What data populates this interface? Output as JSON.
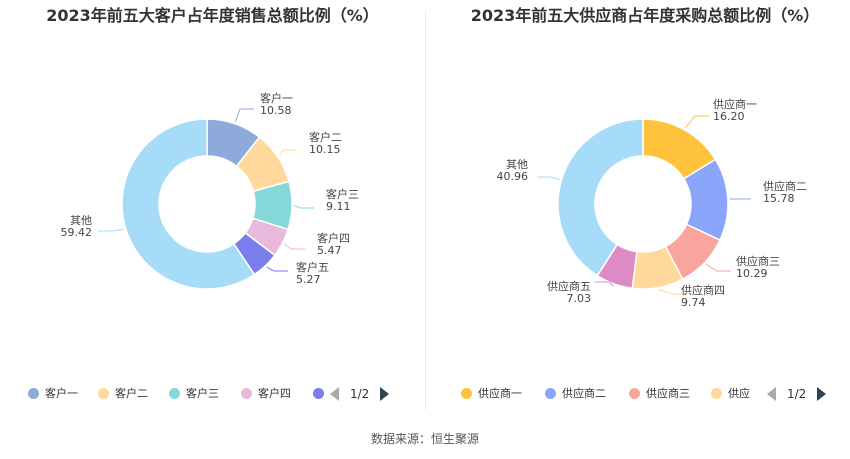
{
  "chart_data": [
    {
      "type": "donut",
      "title": "2023年前五大客户占年度销售总额比例（%）",
      "series": [
        {
          "name": "客户一",
          "label": "10.58",
          "value": 10.58,
          "color": "#8eaadb"
        },
        {
          "name": "客户二",
          "label": "10.15",
          "value": 10.15,
          "color": "#ffd99b"
        },
        {
          "name": "客户三",
          "label": "9.11",
          "value": 9.11,
          "color": "#84d8da"
        },
        {
          "name": "客户四",
          "label": "5.47",
          "value": 5.47,
          "color": "#e9b9dc"
        },
        {
          "name": "客户五",
          "label": "5.27",
          "value": 5.27,
          "color": "#7b7ded"
        },
        {
          "name": "其他",
          "label": "59.42",
          "value": 59.42,
          "color": "#a6dcf8"
        }
      ],
      "legend": {
        "items": [
          {
            "label": "客户一",
            "color": "#8eaadb"
          },
          {
            "label": "客户二",
            "color": "#ffd99b"
          },
          {
            "label": "客户三",
            "color": "#84d8da"
          },
          {
            "label": "客户四",
            "color": "#e9b9dc"
          },
          {
            "label": "",
            "color": "#7b7ded"
          }
        ],
        "page": "1/2"
      }
    },
    {
      "type": "donut",
      "title": "2023年前五大供应商占年度采购总额比例（%）",
      "series": [
        {
          "name": "供应商一",
          "label": "16.20",
          "value": 16.2,
          "color": "#ffc23c"
        },
        {
          "name": "供应商二",
          "label": "15.78",
          "value": 15.78,
          "color": "#89a6fb"
        },
        {
          "name": "供应商三",
          "label": "10.29",
          "value": 10.29,
          "color": "#f9a59d"
        },
        {
          "name": "供应商四",
          "label": "9.74",
          "value": 9.74,
          "color": "#ffd99b"
        },
        {
          "name": "供应商五",
          "label": "7.03",
          "value": 7.03,
          "color": "#de8bc5"
        },
        {
          "name": "其他",
          "label": "40.96",
          "value": 40.96,
          "color": "#a6dcf8"
        }
      ],
      "legend": {
        "items": [
          {
            "label": "供应商一",
            "color": "#ffc23c"
          },
          {
            "label": "供应商二",
            "color": "#89a6fb"
          },
          {
            "label": "供应商三",
            "color": "#f9a59d"
          },
          {
            "label": "供应",
            "color": "#ffd99b"
          }
        ],
        "page": "1/2"
      }
    }
  ],
  "footer": {
    "source": "数据来源：恒生聚源"
  }
}
